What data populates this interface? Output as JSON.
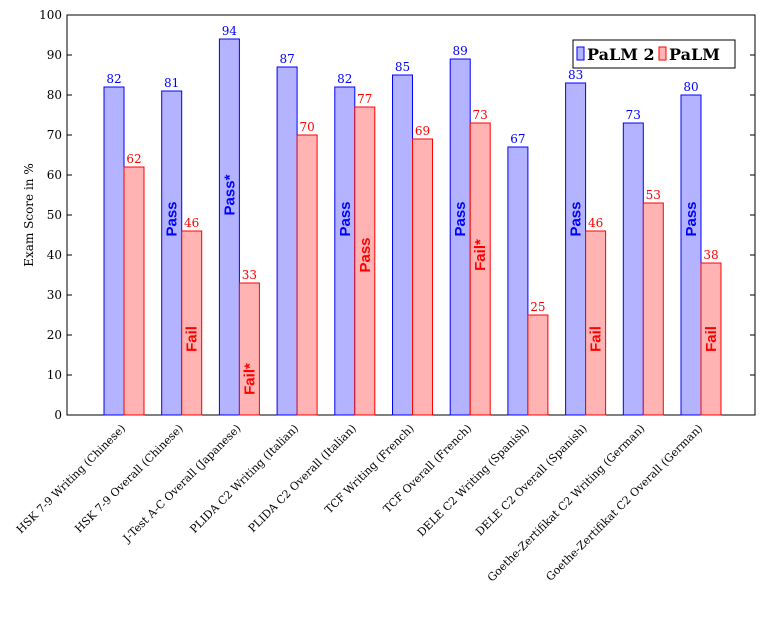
{
  "chart_data": {
    "type": "bar",
    "title": "",
    "xlabel": "",
    "ylabel": "Exam Score in %",
    "ylim": [
      0,
      100
    ],
    "yticks": [
      0,
      10,
      20,
      30,
      40,
      50,
      60,
      70,
      80,
      90,
      100
    ],
    "grid": false,
    "legend_position": "top-right",
    "categories": [
      "HSK 7-9 Writing (Chinese)",
      "HSK 7-9 Overall (Chinese)",
      "J-Test A-C Overall (Japanese)",
      "PLIDA C2 Writing (Italian)",
      "PLIDA C2 Overall (Italian)",
      "TCF Writing (French)",
      "TCF Overall (French)",
      "DELE C2 Writing (Spanish)",
      "DELE C2 Overall (Spanish)",
      "Goethe-Zertifikat C2 Writing (German)",
      "Goethe-Zertifikat C2 Overall (German)"
    ],
    "series": [
      {
        "name": "PaLM 2",
        "color": "#b3b3ff",
        "edge_color": "#0000ff",
        "values": [
          82,
          81,
          94,
          87,
          82,
          85,
          89,
          67,
          83,
          73,
          80
        ],
        "annotations": [
          "",
          "Pass",
          "Pass*",
          "",
          "Pass",
          "",
          "Pass",
          "",
          "Pass",
          "",
          "Pass"
        ]
      },
      {
        "name": "PaLM",
        "color": "#ffb3b3",
        "edge_color": "#ff0000",
        "values": [
          62,
          46,
          33,
          70,
          77,
          69,
          73,
          25,
          46,
          53,
          38
        ],
        "annotations": [
          "",
          "Fail",
          "Fail*",
          "",
          "Pass",
          "",
          "Fail*",
          "",
          "Fail",
          "",
          "Fail"
        ]
      }
    ]
  }
}
